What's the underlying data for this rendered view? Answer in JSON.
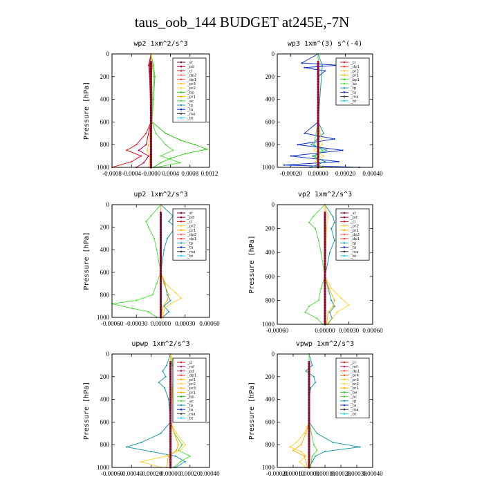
{
  "figure": {
    "title": "taus_oob_144  BUDGET at245E,-7N"
  },
  "colors": {
    "sf": "#7b0a2a",
    "pd": "#b00040",
    "cl": "#d0202a",
    "dp1": "#ff3c3c",
    "dp2": "#ff5a5a",
    "pr1": "#ffb000",
    "pr2": "#ffd23c",
    "pr3": "#ffc020",
    "pr4": "#e06000",
    "bp": "#33cc11",
    "ac": "#55dd44",
    "tp": "#2299aa",
    "ta": "#1133cc",
    "ma": "#333333",
    "bt": "#22ccff",
    "mf": "#c02070",
    "be": "#44bb55",
    "frame": "#000000",
    "thick": "#7a1a5a"
  },
  "chart_data": [
    {
      "type": "line",
      "title": "wp2  1xm^2/s^3",
      "ylabel": "Pressure [hPa]",
      "xlim": [
        -0.0008,
        0.0012
      ],
      "ylim": [
        1000,
        0
      ],
      "xticks": [
        -0.0008,
        -0.0004,
        0.0,
        0.0004,
        0.0008,
        0.0012
      ],
      "xtick_labels": [
        "-0.0008",
        "-0.0004",
        "-0.0000",
        "0.0004",
        "0.0008",
        "0.0012"
      ],
      "yticks": [
        0,
        200,
        400,
        600,
        800,
        1000
      ],
      "ytick_labels": [
        "0",
        "200",
        "400",
        "600",
        "800",
        "1000"
      ],
      "legend": [
        "_sf",
        "_pd",
        "_cl",
        "_dp2",
        "_dp1",
        "_pr3",
        "_pr2",
        "_bp",
        "_pr1",
        "_ac",
        "_tp",
        "_ta",
        "_ma",
        "_bt"
      ],
      "series": [
        {
          "key": "bp",
          "y": [
            0,
            100,
            200,
            400,
            600,
            700,
            760,
            800,
            840,
            880,
            920,
            960,
            1000
          ],
          "x": [
            0.0,
            5e-05,
            8e-05,
            5e-05,
            2e-05,
            0.0003,
            0.0006,
            0.0009,
            0.00115,
            0.0007,
            0.0004,
            0.0002,
            5e-05
          ]
        },
        {
          "key": "ac",
          "y": [
            0,
            100,
            200,
            400,
            600,
            700,
            800,
            850,
            900,
            960,
            1000
          ],
          "x": [
            0.0,
            3e-05,
            5e-05,
            3e-05,
            2e-05,
            0.0001,
            0.0003,
            0.00045,
            0.0002,
            0.0006,
            0.0001
          ]
        },
        {
          "key": "cl",
          "y": [
            0,
            100,
            200,
            600,
            700,
            800,
            850,
            900,
            950,
            1000
          ],
          "x": [
            0.0,
            -5e-05,
            -3e-05,
            0.0,
            -0.0001,
            -0.0003,
            -0.0005,
            -0.0002,
            -0.0004,
            -0.0008
          ]
        },
        {
          "key": "pd",
          "y": [
            0,
            100,
            600,
            800,
            850,
            900,
            960,
            1000
          ],
          "x": [
            0.0,
            -3e-05,
            0.0,
            -0.0001,
            -0.00025,
            -5e-05,
            -0.00015,
            -0.0003
          ]
        },
        {
          "key": "pr3",
          "y": [
            0,
            100,
            600,
            800,
            850,
            900,
            1000
          ],
          "x": [
            0.0,
            2e-05,
            0.0,
            -5e-05,
            -8e-05,
            -2e-05,
            -4e-05
          ]
        }
      ]
    },
    {
      "type": "line",
      "title": "wp3  1xm^(3) s^(-4)",
      "ylabel": "",
      "xlim": [
        -0.0003,
        0.0004
      ],
      "ylim": [
        1000,
        0
      ],
      "xticks": [
        -0.0002,
        0.0,
        0.0002,
        0.0004
      ],
      "xtick_labels": [
        "-0.00020",
        "0.00000",
        "0.00020",
        "0.00040"
      ],
      "yticks": [
        0,
        200,
        400,
        600,
        800,
        1000
      ],
      "ytick_labels": [
        "0",
        "200",
        "400",
        "600",
        "800",
        "1000"
      ],
      "legend": [
        "_cl",
        "_dp1",
        "_pr2",
        "_pr1",
        "_bp1",
        "_ac",
        "_tp",
        "_ta",
        "_ma",
        "_bt"
      ],
      "series": [
        {
          "key": "ta",
          "y": [
            0,
            80,
            100,
            120,
            150,
            200,
            600,
            700,
            750,
            800,
            850,
            900,
            950,
            980,
            1000
          ],
          "x": [
            0.0,
            -0.00012,
            0.00015,
            -0.0001,
            5e-05,
            0.0,
            0.0,
            -0.0001,
            0.00012,
            -0.00015,
            0.00018,
            -0.0002,
            0.00015,
            -0.00025,
            0.0003
          ]
        },
        {
          "key": "tp",
          "y": [
            0,
            100,
            600,
            700,
            800,
            850,
            900,
            950,
            1000
          ],
          "x": [
            0.0,
            3e-05,
            0.0,
            4e-05,
            -5e-05,
            6e-05,
            -4e-05,
            5e-05,
            -6e-05
          ]
        },
        {
          "key": "pr2",
          "y": [
            0,
            600,
            800,
            850,
            900,
            950,
            1000
          ],
          "x": [
            0.0,
            0.0,
            3e-05,
            -3e-05,
            4e-05,
            -2e-05,
            3e-05
          ]
        },
        {
          "key": "ac",
          "y": [
            0,
            600,
            800,
            850,
            900,
            1000
          ],
          "x": [
            0.0,
            0.0,
            -3e-05,
            3e-05,
            -2e-05,
            2e-05
          ]
        }
      ]
    },
    {
      "type": "line",
      "title": "up2  1xm^2/s^3",
      "ylabel": "Pressure [hPa]",
      "xlim": [
        -0.0006,
        0.0006
      ],
      "ylim": [
        1000,
        0
      ],
      "xticks": [
        -0.0006,
        -0.0003,
        0.0,
        0.0003,
        0.0006
      ],
      "xtick_labels": [
        "-0.00060",
        "-0.00030",
        "0.00000",
        "0.00030",
        "0.00060"
      ],
      "yticks": [
        0,
        200,
        400,
        600,
        800,
        1000
      ],
      "ytick_labels": [
        "0",
        "200",
        "400",
        "600",
        "800",
        "1000"
      ],
      "legend": [
        "_sf",
        "_pd",
        "_cl",
        "_pr2",
        "_pr1",
        "_dp2",
        "_dp1",
        "_tp",
        "_ta",
        "_ma",
        "_bt"
      ],
      "series": [
        {
          "key": "ac",
          "y": [
            0,
            100,
            150,
            200,
            300,
            400,
            600,
            700,
            800,
            850,
            880,
            920,
            950,
            1000
          ],
          "x": [
            0.0,
            -0.00012,
            -0.00018,
            -0.00015,
            -8e-05,
            -5e-05,
            0.0,
            -5e-05,
            -0.0001,
            -0.0003,
            -0.0006,
            -0.00035,
            -0.00015,
            -5e-05
          ]
        },
        {
          "key": "tp",
          "y": [
            0,
            100,
            150,
            200,
            300,
            400,
            600,
            700,
            800,
            850,
            900,
            950,
            1000
          ],
          "x": [
            0.0,
            0.00015,
            0.0001,
            0.00018,
            8e-05,
            4e-05,
            0.0,
            5e-05,
            8e-05,
            0.00012,
            4e-05,
            0.0001,
            2e-05
          ]
        },
        {
          "key": "pr2",
          "y": [
            0,
            600,
            700,
            780,
            830,
            880,
            920,
            1000
          ],
          "x": [
            0.0,
            0.0,
            6e-05,
            0.00018,
            0.00025,
            0.00012,
            5e-05,
            2e-05
          ]
        },
        {
          "key": "pr1",
          "y": [
            0,
            600,
            700,
            800,
            850,
            900,
            1000
          ],
          "x": [
            0.0,
            0.0,
            4e-05,
            0.0001,
            8e-05,
            3e-05,
            1e-05
          ]
        }
      ]
    },
    {
      "type": "line",
      "title": "vp2  1xm^2/s^3",
      "ylabel": "Pressure [hPa]",
      "xlim": [
        -0.0006,
        0.0006
      ],
      "ylim": [
        1000,
        0
      ],
      "xticks": [
        -0.0006,
        0.0,
        0.0003,
        0.0006
      ],
      "xtick_labels": [
        "-0.00060",
        "0.00000",
        "0.00030",
        "0.00060"
      ],
      "yticks": [
        0,
        200,
        400,
        600,
        800,
        1000
      ],
      "ytick_labels": [
        "0",
        "200",
        "400",
        "600",
        "800",
        "1000"
      ],
      "legend": [
        "_sf",
        "_pd",
        "_cl",
        "_pr2",
        "_pr1",
        "_dp2",
        "_dp1",
        "_tp",
        "_ta",
        "_ma",
        "_bt"
      ],
      "series": [
        {
          "key": "ac",
          "y": [
            0,
            100,
            150,
            200,
            300,
            400,
            600,
            700,
            800,
            850,
            900,
            950,
            1000
          ],
          "x": [
            0.0,
            -0.00015,
            -0.0002,
            -0.00012,
            -8e-05,
            -5e-05,
            0.0,
            -5e-05,
            -8e-05,
            -0.0002,
            -0.00025,
            -0.0001,
            -3e-05
          ]
        },
        {
          "key": "tp",
          "y": [
            0,
            100,
            150,
            200,
            300,
            400,
            600,
            700,
            800,
            850,
            900,
            950,
            1000
          ],
          "x": [
            0.0,
            0.0001,
            0.00012,
            8e-05,
            0.00012,
            6e-05,
            0.0,
            4e-05,
            8e-05,
            0.00012,
            6e-05,
            9e-05,
            3e-05
          ]
        },
        {
          "key": "pr2",
          "y": [
            0,
            100,
            200,
            600,
            700,
            780,
            840,
            900,
            1000
          ],
          "x": [
            0.0,
            4e-05,
            2e-05,
            0.0,
            8e-05,
            0.0002,
            0.0003,
            0.00015,
            4e-05
          ]
        },
        {
          "key": "pr1",
          "y": [
            0,
            600,
            700,
            800,
            850,
            900,
            1000
          ],
          "x": [
            0.0,
            0.0,
            5e-05,
            0.00012,
            0.0001,
            4e-05,
            2e-05
          ]
        }
      ]
    },
    {
      "type": "line",
      "title": "upwp  1xm^2/s^3",
      "ylabel": "Pressure [hPa]",
      "xlim": [
        -0.0006,
        0.0004
      ],
      "ylim": [
        1000,
        0
      ],
      "xticks": [
        -0.0006,
        -0.0004,
        -0.0002,
        0.0,
        0.0002,
        0.0004
      ],
      "xtick_labels": [
        "-0.00060",
        "-0.00040",
        "-0.00020",
        "0.00000",
        "0.00020",
        "0.00040"
      ],
      "yticks": [
        0,
        200,
        400,
        600,
        800,
        1000
      ],
      "ytick_labels": [
        "0",
        "200",
        "400",
        "600",
        "800",
        "1000"
      ],
      "legend": [
        "_cl",
        "_mf",
        "_pd",
        "_dp1",
        "_pr1",
        "_pr2",
        "_pr3",
        "_pr1",
        "_bp",
        "_ac",
        "_tp",
        "_ta",
        "_ma",
        "_bt"
      ],
      "series": [
        {
          "key": "tp",
          "y": [
            0,
            100,
            150,
            200,
            250,
            300,
            400,
            600,
            700,
            780,
            820,
            860,
            900,
            950,
            1000
          ],
          "x": [
            0.0,
            -4e-05,
            -8e-05,
            -5e-05,
            -0.00012,
            -6e-05,
            -2e-05,
            0.0,
            -0.0001,
            -0.0003,
            -0.00045,
            -0.0002,
            5e-05,
            0.00015,
            5e-05
          ]
        },
        {
          "key": "ac",
          "y": [
            0,
            100,
            200,
            300,
            400,
            600,
            700,
            800,
            850,
            900,
            950,
            1000
          ],
          "x": [
            0.0,
            2e-05,
            4e-05,
            2e-05,
            1e-05,
            0.0,
            4e-05,
            0.00012,
            8e-05,
            0.0002,
            0.0001,
            3e-05
          ]
        },
        {
          "key": "pr2",
          "y": [
            0,
            100,
            200,
            300,
            600,
            700,
            800,
            850,
            900,
            950,
            1000
          ],
          "x": [
            0.0,
            4e-05,
            3e-05,
            2e-05,
            0.0,
            6e-05,
            0.00015,
            0.0001,
            -5e-05,
            -0.0003,
            -0.0001
          ]
        },
        {
          "key": "pr1",
          "y": [
            0,
            600,
            800,
            850,
            900,
            1000
          ],
          "x": [
            0.0,
            0.0,
            8e-05,
            6e-05,
            -2e-05,
            -4e-05
          ]
        }
      ]
    },
    {
      "type": "line",
      "title": "vpwp  1xm^2/s^3",
      "ylabel": "Pressure [hPa]",
      "xlim": [
        -0.0002,
        0.0004
      ],
      "ylim": [
        1000,
        0
      ],
      "xticks": [
        -0.0002,
        -0.0001,
        0.0,
        0.0001,
        0.0002,
        0.0003,
        0.0004
      ],
      "xtick_labels": [
        "-0.00020",
        "-0.00010",
        "0.00000",
        "0.00010",
        "0.00020",
        "0.00030",
        "0.00040"
      ],
      "yticks": [
        0,
        200,
        400,
        600,
        800,
        1000
      ],
      "ytick_labels": [
        "0",
        "200",
        "400",
        "600",
        "800",
        "1000"
      ],
      "legend": [
        "_cl",
        "_mf",
        "_dp1",
        "_pr4",
        "_pr3",
        "_pr2",
        "_pr1",
        "_be",
        "_ac",
        "_tp",
        "_ta",
        "_ma",
        "_bt"
      ],
      "series": [
        {
          "key": "tp",
          "y": [
            0,
            100,
            150,
            200,
            250,
            300,
            400,
            600,
            700,
            780,
            820,
            860,
            900,
            950,
            1000
          ],
          "x": [
            0.0,
            2e-05,
            -2e-05,
            3e-05,
            4e-05,
            1e-05,
            0.0,
            0.0,
            5e-05,
            0.00015,
            0.00032,
            0.0001,
            4e-05,
            2e-05,
            0.0
          ]
        },
        {
          "key": "pr2",
          "y": [
            0,
            600,
            700,
            780,
            820,
            860,
            900,
            950,
            1000
          ],
          "x": [
            0.0,
            0.0,
            -3e-05,
            -8e-05,
            -0.00012,
            -5e-05,
            -2e-05,
            -6e-05,
            -2e-05
          ]
        },
        {
          "key": "pr1",
          "y": [
            0,
            600,
            700,
            800,
            850,
            900,
            1000
          ],
          "x": [
            0.0,
            0.0,
            -2e-05,
            -5e-05,
            -0.0001,
            -3e-05,
            -1e-05
          ]
        },
        {
          "key": "ac",
          "y": [
            0,
            600,
            800,
            850,
            900,
            1000
          ],
          "x": [
            0.0,
            0.0,
            3e-05,
            5e-05,
            2e-05,
            1e-05
          ]
        }
      ]
    }
  ]
}
